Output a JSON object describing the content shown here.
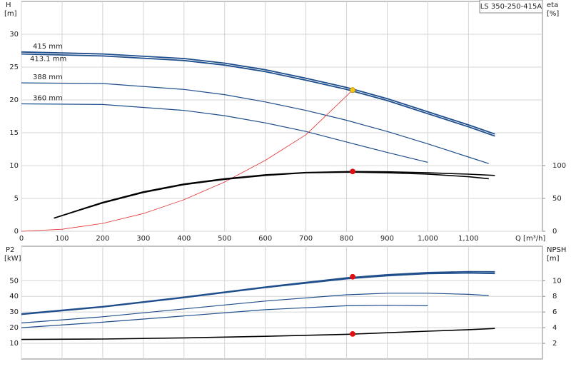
{
  "chart_data": [
    {
      "type": "line",
      "title": "LS 350-250-415A",
      "y_label": "H",
      "y_unit": "[m]",
      "y2_label": "eta",
      "y2_unit": "[%]",
      "x_label": "Q [m³/h]",
      "xlim": [
        0,
        1282
      ],
      "ylim": [
        0,
        35
      ],
      "y2lim": [
        0,
        350
      ],
      "xticks": [
        0,
        100,
        200,
        300,
        400,
        500,
        600,
        700,
        800,
        900,
        {
          "value": 1000,
          "label": "1,000"
        },
        {
          "value": 1100,
          "label": "1,100"
        }
      ],
      "yticks": [
        0,
        5,
        10,
        15,
        20,
        25,
        30
      ],
      "y2ticks": [
        0,
        50,
        100
      ],
      "grid": true,
      "series": [
        {
          "name": "415 mm",
          "color": "#1f4e8c",
          "x": [
            0,
            200,
            400,
            500,
            600,
            700,
            800,
            900,
            1000,
            1100,
            1165
          ],
          "values": [
            27.3,
            27.0,
            26.3,
            25.6,
            24.6,
            23.3,
            21.9,
            20.2,
            18.2,
            16.2,
            14.8
          ]
        },
        {
          "name": "413.1 mm",
          "color": "#1f4e8c",
          "x": [
            0,
            200,
            400,
            500,
            600,
            700,
            800,
            900,
            1000,
            1100,
            1165
          ],
          "values": [
            27.0,
            26.7,
            26.0,
            25.3,
            24.3,
            23.0,
            21.6,
            19.9,
            17.9,
            15.9,
            14.5
          ]
        },
        {
          "name": "388 mm",
          "color": "#1f4e8c",
          "x": [
            0,
            200,
            400,
            500,
            600,
            700,
            800,
            900,
            1000,
            1100,
            1150
          ],
          "values": [
            22.6,
            22.5,
            21.6,
            20.8,
            19.7,
            18.4,
            16.9,
            15.2,
            13.3,
            11.3,
            10.3
          ]
        },
        {
          "name": "360 mm",
          "color": "#1f4e8c",
          "x": [
            0,
            200,
            400,
            500,
            600,
            700,
            800,
            900,
            1000
          ],
          "values": [
            19.4,
            19.3,
            18.4,
            17.6,
            16.5,
            15.2,
            13.6,
            12.0,
            10.5
          ]
        },
        {
          "color": "#e53030",
          "x": [
            0,
            100,
            200,
            300,
            400,
            500,
            600,
            700,
            815
          ],
          "values": [
            0,
            0.3,
            1.2,
            2.7,
            4.8,
            7.5,
            10.8,
            14.7,
            21.5
          ]
        },
        {
          "color": "#000000",
          "axis": "y2",
          "x": [
            80,
            200,
            300,
            400,
            500,
            600,
            700,
            815,
            900,
            1000,
            1100,
            1165
          ],
          "values": [
            20,
            44,
            60,
            72,
            80,
            86,
            89.5,
            91,
            90.5,
            89,
            87,
            85
          ]
        },
        {
          "color": "#000000",
          "axis": "y2",
          "x": [
            80,
            200,
            300,
            400,
            500,
            600,
            700,
            815,
            900,
            1000,
            1100,
            1150
          ],
          "values": [
            20,
            43,
            59,
            71,
            79,
            85,
            89,
            90,
            89,
            87,
            83,
            80
          ]
        }
      ],
      "points": [
        {
          "x": 815,
          "y": 21.5,
          "color": "#f5c518"
        },
        {
          "x": 815,
          "y": 91,
          "color": "#e01010",
          "axis": "y2"
        }
      ]
    },
    {
      "type": "line",
      "y_label": "P2",
      "y_unit": "[kW]",
      "y2_label": "NPSH",
      "y2_unit": "[m]",
      "xlim": [
        0,
        1282
      ],
      "ylim": [
        0,
        72
      ],
      "y2lim": [
        0,
        14.4
      ],
      "xticks": [
        0,
        100,
        200,
        300,
        400,
        500,
        600,
        700,
        800,
        900,
        1000,
        1100
      ],
      "yticks": [
        10,
        20,
        30,
        40,
        50
      ],
      "y2ticks": [
        2,
        4,
        6,
        8,
        10
      ],
      "grid": true,
      "series": [
        {
          "color": "#1f4e8c",
          "x": [
            0,
            200,
            400,
            600,
            800,
            900,
            1000,
            1100,
            1165
          ],
          "values": [
            28.8,
            33.5,
            39.5,
            46,
            51.8,
            53.8,
            55.2,
            55.8,
            55.7
          ]
        },
        {
          "color": "#1f4e8c",
          "x": [
            0,
            200,
            400,
            600,
            800,
            900,
            1000,
            1100,
            1165
          ],
          "values": [
            28.5,
            33.2,
            39.2,
            45.6,
            51.2,
            53.2,
            54.5,
            54.9,
            54.6
          ]
        },
        {
          "color": "#1f4e8c",
          "x": [
            0,
            200,
            400,
            600,
            800,
            900,
            1000,
            1100,
            1150
          ],
          "values": [
            23,
            27,
            32,
            37,
            41,
            42,
            42,
            41.3,
            40.5
          ]
        },
        {
          "color": "#1f4e8c",
          "x": [
            0,
            200,
            400,
            600,
            800,
            900,
            1000
          ],
          "values": [
            20,
            23.5,
            27.5,
            31.5,
            34,
            34.3,
            34
          ]
        },
        {
          "color": "#000000",
          "axis": "y2",
          "x": [
            0,
            200,
            400,
            600,
            800,
            900,
            1000,
            1100,
            1165
          ],
          "values": [
            2.5,
            2.55,
            2.7,
            2.9,
            3.15,
            3.35,
            3.55,
            3.75,
            3.9
          ]
        }
      ],
      "points": [
        {
          "x": 815,
          "y": 52.5,
          "color": "#e01010"
        },
        {
          "x": 815,
          "y": 3.2,
          "color": "#e01010",
          "axis": "y2"
        }
      ]
    }
  ]
}
